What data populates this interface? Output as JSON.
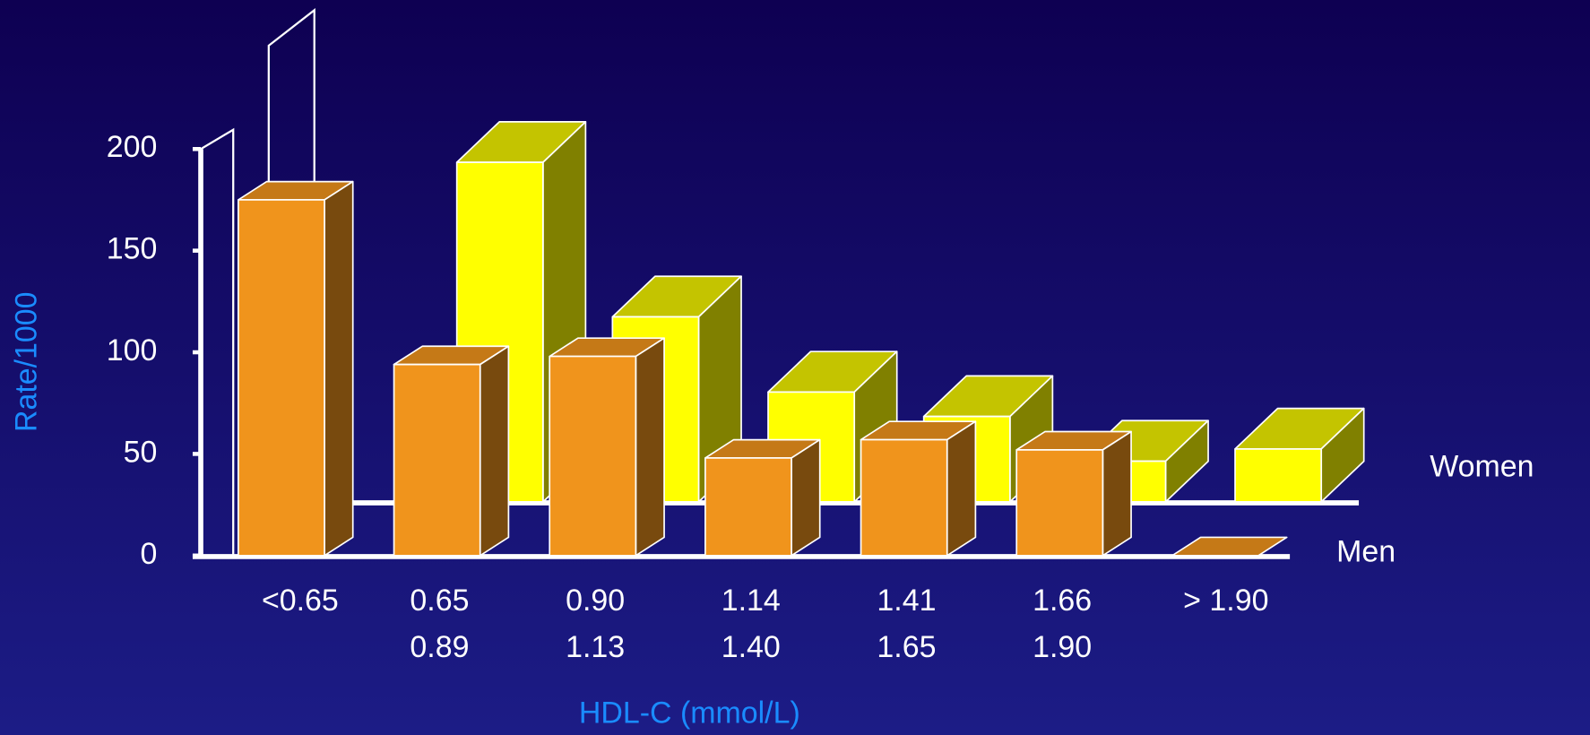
{
  "chart_data": {
    "type": "bar3d",
    "y_label": "Rate/1000",
    "x_label": "HDL-C (mmol/L)",
    "categories": [
      [
        "<0.65"
      ],
      [
        "0.65",
        "0.89"
      ],
      [
        "0.90",
        "1.13"
      ],
      [
        "1.14",
        "1.40"
      ],
      [
        "1.41",
        "1.65"
      ],
      [
        "1.66",
        "1.90"
      ],
      [
        "> 1.90"
      ]
    ],
    "series": [
      {
        "name": "Men",
        "color": "#f0941c",
        "values": [
          175,
          94,
          98,
          48,
          57,
          52,
          0
        ]
      },
      {
        "name": "Women",
        "color": "#ffff00",
        "values": [
          null,
          167,
          91,
          54,
          42,
          20,
          26
        ]
      }
    ],
    "ylim": [
      0,
      200
    ],
    "yticks": [
      0,
      50,
      100,
      150,
      200
    ]
  }
}
